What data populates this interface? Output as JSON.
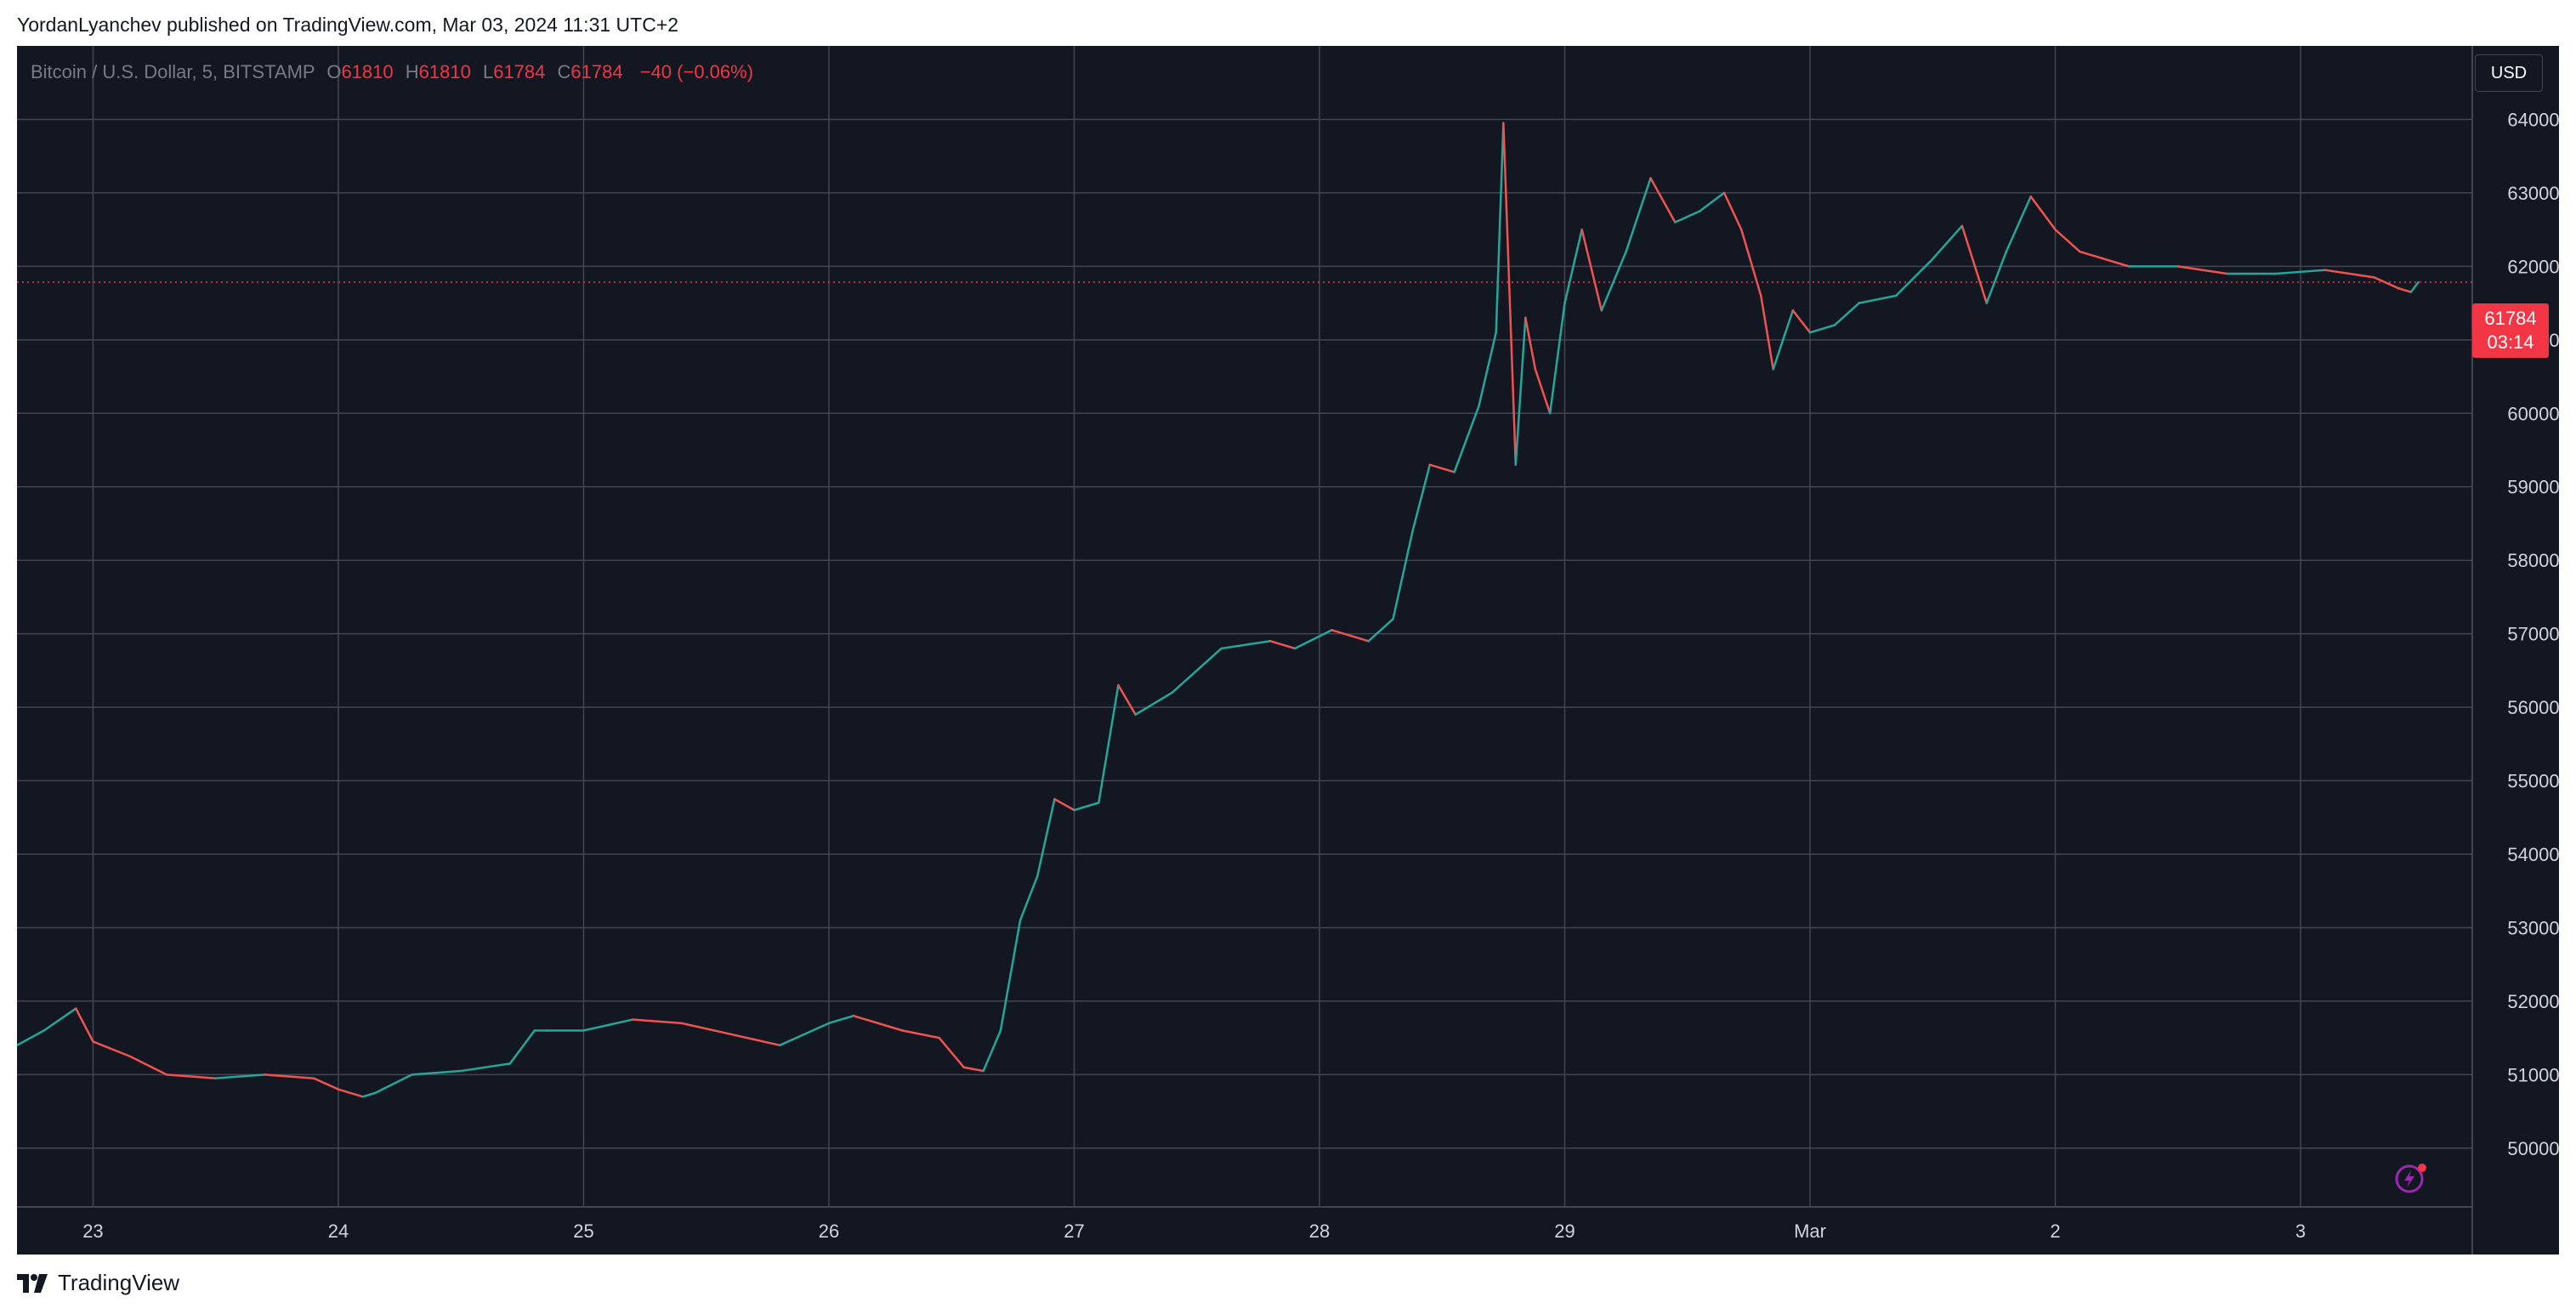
{
  "header": {
    "published_line": "YordanLyanchev published on TradingView.com, Mar 03, 2024 11:31 UTC+2"
  },
  "legend": {
    "symbol": "Bitcoin / U.S. Dollar, 5, BITSTAMP",
    "open_label": "O",
    "open_value": "61810",
    "high_label": "H",
    "high_value": "61810",
    "low_label": "L",
    "low_value": "61784",
    "close_label": "C",
    "close_value": "61784",
    "change": "−40 (−0.06%)"
  },
  "currency_button": "USD",
  "price_tag": {
    "price": "61784",
    "countdown": "03:14"
  },
  "footer": {
    "brand": "TradingView"
  },
  "colors": {
    "background": "#131722",
    "grid": "#434651",
    "up": "#26a69a",
    "down": "#ef5350",
    "last_price": "#f23645",
    "axis_text": "#d1d4dc"
  },
  "icons": {
    "replay": "lightning-bolt-icon",
    "logo": "tradingview-logo-icon"
  },
  "chart_data": {
    "type": "line",
    "title": "Bitcoin / U.S. Dollar, 5, BITSTAMP",
    "xlabel": "",
    "ylabel": "",
    "ylim": [
      49200,
      65000
    ],
    "y_ticks": [
      50000,
      51000,
      52000,
      53000,
      54000,
      55000,
      56000,
      57000,
      58000,
      59000,
      60000,
      61000,
      62000,
      63000,
      64000
    ],
    "x_ticks": [
      {
        "label": "23",
        "day": 23
      },
      {
        "label": "24",
        "day": 24
      },
      {
        "label": "25",
        "day": 25
      },
      {
        "label": "26",
        "day": 26
      },
      {
        "label": "27",
        "day": 27
      },
      {
        "label": "28",
        "day": 28
      },
      {
        "label": "29",
        "day": 29
      },
      {
        "label": "Mar",
        "day": 30
      },
      {
        "label": "2",
        "day": 31
      },
      {
        "label": "3",
        "day": 32
      }
    ],
    "xlim": [
      22.69,
      32.7
    ],
    "grid": true,
    "last_price": 61784,
    "series": [
      {
        "x": [
          22.69,
          22.8,
          22.93,
          23.0,
          23.15,
          23.3,
          23.5,
          23.7,
          23.9,
          24.0,
          24.1,
          24.15,
          24.3,
          24.5,
          24.7,
          24.8,
          24.85,
          25.0,
          25.2,
          25.4,
          25.6,
          25.8,
          25.9,
          26.0,
          26.1,
          26.3,
          26.45,
          26.55,
          26.63,
          26.7,
          26.78,
          26.85,
          26.92,
          27.0,
          27.1,
          27.18,
          27.25,
          27.4,
          27.6,
          27.8,
          27.9,
          28.05,
          28.2,
          28.3,
          28.38,
          28.45,
          28.55,
          28.65,
          28.72,
          28.75,
          28.8,
          28.84,
          28.88,
          28.94,
          29.0,
          29.07,
          29.15,
          29.25,
          29.35,
          29.45,
          29.55,
          29.65,
          29.72,
          29.8,
          29.85,
          29.93,
          30.0,
          30.1,
          30.2,
          30.35,
          30.5,
          30.62,
          30.72,
          30.8,
          30.9,
          31.0,
          31.1,
          31.3,
          31.5,
          31.7,
          31.9,
          32.1,
          32.3,
          32.4,
          32.45,
          32.48
        ],
        "y": [
          51400,
          51600,
          51900,
          51450,
          51250,
          51000,
          50950,
          51000,
          50950,
          50800,
          50700,
          50750,
          51000,
          51050,
          51150,
          51600,
          51600,
          51600,
          51750,
          51700,
          51550,
          51400,
          51550,
          51700,
          51800,
          51600,
          51500,
          51100,
          51050,
          51600,
          53100,
          53700,
          54750,
          54600,
          54700,
          56300,
          55900,
          56200,
          56800,
          56900,
          56800,
          57050,
          56900,
          57200,
          58400,
          59300,
          59200,
          60100,
          61100,
          63950,
          59300,
          61300,
          60600,
          60000,
          61500,
          62500,
          61400,
          62200,
          63200,
          62600,
          62750,
          63000,
          62500,
          61600,
          60600,
          61400,
          61100,
          61200,
          61500,
          61600,
          62100,
          62550,
          61500,
          62200,
          62950,
          62500,
          62200,
          62000,
          62000,
          61900,
          61900,
          61950,
          61850,
          61700,
          61650,
          61784
        ]
      }
    ]
  }
}
